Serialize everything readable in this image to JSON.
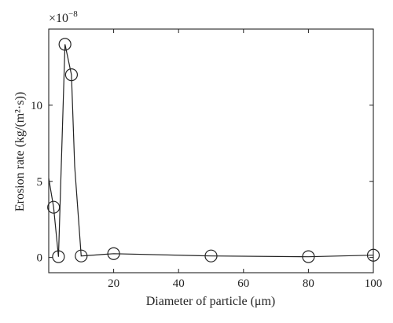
{
  "chart_data": {
    "type": "line",
    "xlabel": "Diameter of particle (μm)",
    "ylabel": "Erosion rate (kg/(m²·s))",
    "y_multiplier": {
      "base": "×10",
      "exponent": "−8"
    },
    "xlim": [
      0,
      100
    ],
    "ylim": [
      -1,
      15
    ],
    "x_ticks": [
      20,
      40,
      60,
      80,
      100
    ],
    "x_tick_labels": [
      "20",
      "40",
      "60",
      "80",
      "100"
    ],
    "y_ticks": [
      0,
      5,
      10
    ],
    "y_tick_labels": [
      "0",
      "5",
      "10"
    ],
    "grid": false,
    "line": {
      "x": [
        0,
        1.5,
        3,
        5,
        7,
        8,
        10,
        20,
        50,
        80,
        100
      ],
      "y": [
        5.2,
        3.3,
        0.05,
        14,
        12,
        6,
        0.1,
        0.25,
        0.1,
        0.05,
        0.15
      ]
    },
    "markers": {
      "x": [
        1.5,
        3,
        5,
        7,
        10,
        20,
        50,
        80,
        100
      ],
      "y": [
        3.3,
        0.05,
        14,
        12,
        0.1,
        0.25,
        0.1,
        0.05,
        0.15
      ]
    }
  }
}
